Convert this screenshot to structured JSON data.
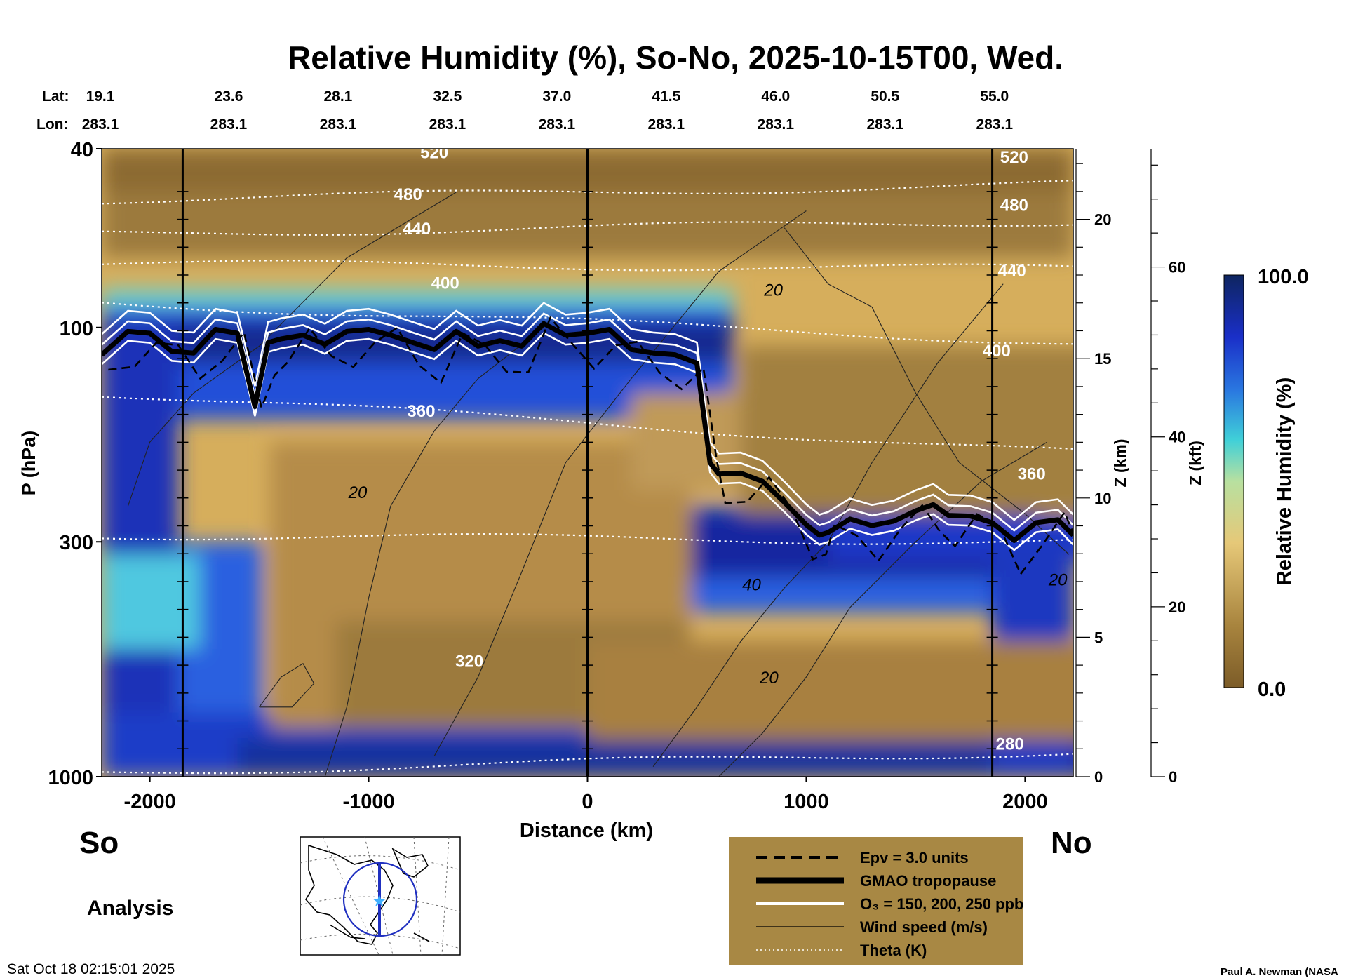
{
  "chart_data": {
    "type": "heatmap",
    "title": "Relative Humidity (%), So-No, 2025-10-15T00, Wed.",
    "xlabel": "Distance (km)",
    "ylabel": "P (hPa)",
    "ylabel_right_km": "Z (km)",
    "ylabel_right_kft": "Z (kft)",
    "xlim": [
      -2220,
      2220
    ],
    "ylim_hpa": [
      1000,
      40
    ],
    "x_ticks": [
      -2000,
      -1000,
      0,
      1000,
      2000
    ],
    "p_ticks": [
      40,
      100,
      300,
      1000
    ],
    "z_km_ticks": [
      0,
      5,
      10,
      15,
      20
    ],
    "z_kft_ticks": [
      0,
      20,
      40,
      60
    ],
    "lat_label": "Lat:",
    "lon_label": "Lon:",
    "lat_values": [
      "19.1",
      "23.6",
      "28.1",
      "32.5",
      "37.0",
      "41.5",
      "46.0",
      "50.5",
      "55.0"
    ],
    "lon_values": [
      "283.1",
      "283.1",
      "283.1",
      "283.1",
      "283.1",
      "283.1",
      "283.1",
      "283.1",
      "283.1"
    ],
    "lat_lon_distances_km": [
      -2220,
      -1720,
      -1220,
      -720,
      -220,
      280,
      780,
      1280,
      1780
    ],
    "vertical_markers_km": [
      -1850,
      0,
      1850
    ],
    "colorbar": {
      "label": "Relative Humidity (%)",
      "min": 0.0,
      "max": 100.0,
      "min_label": "0.0",
      "max_label": "100.0"
    },
    "theta_isentropes_K": [
      {
        "label": "520",
        "p_left": 52,
        "p_right": 48
      },
      {
        "label": "480",
        "p_left": 62,
        "p_right": 58
      },
      {
        "label": "440",
        "p_left": 72,
        "p_right": 74
      },
      {
        "label": "400",
        "p_left": 88,
        "p_right": 108
      },
      {
        "label": "360",
        "p_left": 140,
        "p_right": 190
      },
      {
        "label": "320",
        "p_left": 290,
        "p_right": 300
      },
      {
        "label": "280",
        "p_left": 980,
        "p_right": 880
      }
    ],
    "theta_label_positions": [
      {
        "label": "520",
        "x": -700,
        "p": 42
      },
      {
        "label": "480",
        "x": -820,
        "p": 52
      },
      {
        "label": "440",
        "x": -780,
        "p": 62
      },
      {
        "label": "400",
        "x": -650,
        "p": 82
      },
      {
        "label": "360",
        "x": -760,
        "p": 158
      },
      {
        "label": "320",
        "x": -540,
        "p": 570
      },
      {
        "label": "520",
        "x": 1950,
        "p": 43
      },
      {
        "label": "480",
        "x": 1950,
        "p": 55
      },
      {
        "label": "440",
        "x": 1940,
        "p": 77
      },
      {
        "label": "400",
        "x": 1870,
        "p": 116
      },
      {
        "label": "360",
        "x": 2030,
        "p": 218
      },
      {
        "label": "280",
        "x": 1930,
        "p": 870
      }
    ],
    "tropopause_hpa": {
      "x": [
        -2220,
        -2100,
        -2000,
        -1900,
        -1800,
        -1700,
        -1600,
        -1520,
        -1460,
        -1400,
        -1300,
        -1200,
        -1100,
        -1000,
        -900,
        -800,
        -700,
        -600,
        -500,
        -400,
        -300,
        -200,
        -100,
        0,
        100,
        200,
        300,
        400,
        500,
        560,
        600,
        700,
        800,
        900,
        1000,
        1060,
        1100,
        1200,
        1300,
        1400,
        1500,
        1580,
        1650,
        1750,
        1850,
        1950,
        2050,
        2150,
        2220
      ],
      "p": [
        115,
        102,
        103,
        113,
        114,
        101,
        103,
        150,
        108,
        106,
        104,
        109,
        102,
        101,
        104,
        108,
        112,
        102,
        110,
        107,
        110,
        98,
        104,
        103,
        101,
        112,
        114,
        115,
        120,
        200,
        212,
        211,
        220,
        245,
        275,
        290,
        286,
        267,
        276,
        270,
        256,
        248,
        262,
        263,
        272,
        298,
        272,
        268,
        290
      ]
    },
    "legend": [
      {
        "style": "dashed",
        "label": "Epv = 3.0 units"
      },
      {
        "style": "thick",
        "label": "GMAO tropopause"
      },
      {
        "style": "white",
        "label": "O₃ = 150, 200, 250 ppb"
      },
      {
        "style": "thin",
        "label": "Wind speed (m/s)"
      },
      {
        "style": "dotted",
        "label": "Theta (K)"
      }
    ],
    "wind_contour_labels": [
      {
        "label": "20",
        "x": 850,
        "p": 85
      },
      {
        "label": "20",
        "x": -1050,
        "p": 240
      },
      {
        "label": "40",
        "x": 750,
        "p": 385
      },
      {
        "label": "20",
        "x": 830,
        "p": 620
      },
      {
        "label": "20",
        "x": 2150,
        "p": 375
      }
    ]
  },
  "labels": {
    "south": "So",
    "north": "No",
    "analysis": "Analysis",
    "timestamp": "Sat Oct 18 02:15:01 2025",
    "credit": "Paul A. Newman (NASA"
  },
  "colors": {
    "rh_dry": "#8a6a30",
    "rh_mid": "#e0bf6e",
    "rh_moist": "#4fd0e0",
    "rh_wet": "#1a2f9a",
    "legend_bg": "#a88844",
    "ozone": "#ffffff",
    "tropopause": "#000000"
  }
}
